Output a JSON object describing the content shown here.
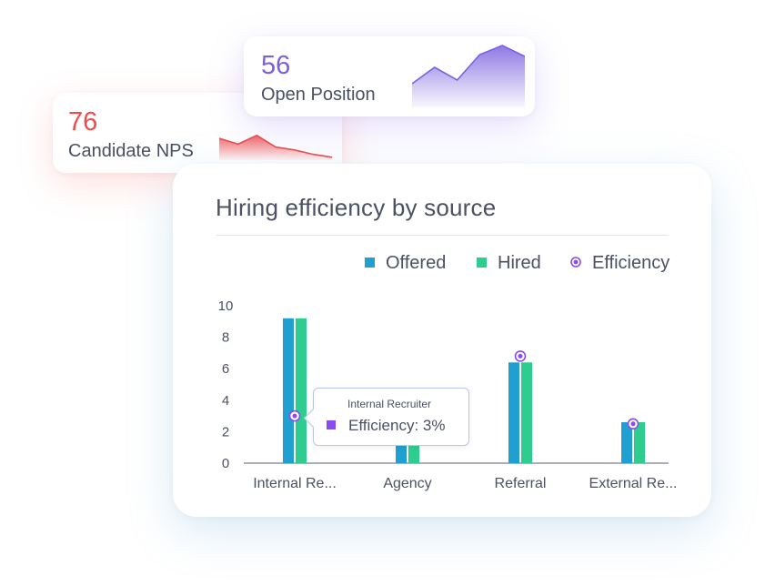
{
  "kpi_cards": [
    {
      "value": "76",
      "label": "Candidate NPS",
      "color": "#ef4b4b",
      "spark": [
        30,
        22,
        34,
        18,
        14,
        8,
        4
      ]
    },
    {
      "value": "56",
      "label": "Open Position",
      "color": "#7b61e0",
      "spark": [
        26,
        44,
        30,
        58,
        68,
        56
      ]
    }
  ],
  "chart_data": {
    "type": "bar",
    "title": "Hiring efficiency by source",
    "categories": [
      "Internal Re...",
      "Agency",
      "Referral",
      "External Re..."
    ],
    "series": [
      {
        "name": "Offered",
        "color": "#1fa0d1",
        "values": [
          9.2,
          1.2,
          6.4,
          2.6
        ]
      },
      {
        "name": "Hired",
        "color": "#2ecc8f",
        "values": [
          9.2,
          1.2,
          6.4,
          2.6
        ]
      }
    ],
    "efficiency": {
      "name": "Efficiency",
      "color": "#8a4cef",
      "values": [
        3.0,
        null,
        6.8,
        2.5
      ]
    },
    "yticks": [
      0,
      2,
      4,
      6,
      8,
      10
    ],
    "ylim": [
      0,
      10
    ],
    "legend_position": "top-right",
    "tooltip": {
      "title": "Internal Recruiter",
      "label": "Efficiency: 3%"
    }
  }
}
